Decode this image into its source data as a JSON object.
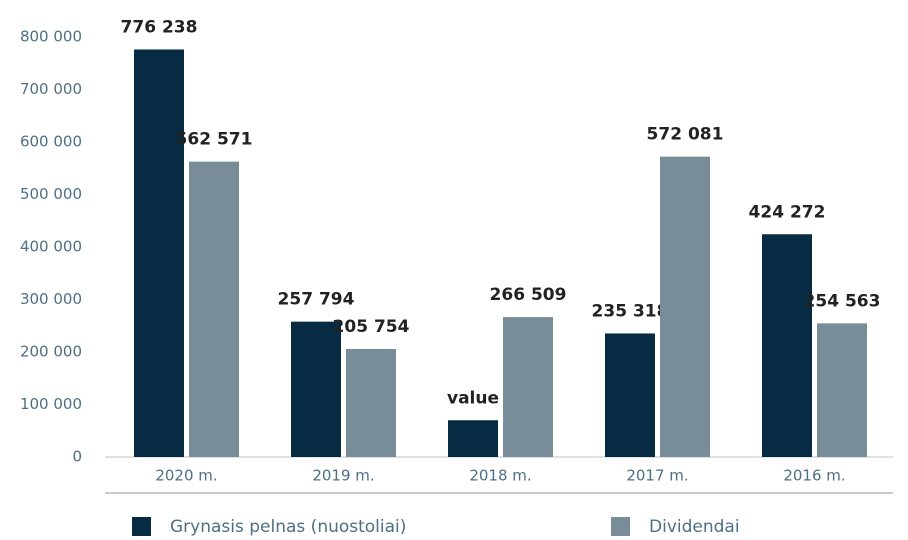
{
  "chart_data": {
    "type": "bar",
    "categories": [
      "2020 m.",
      "2019 m.",
      "2018 m.",
      "2017 m.",
      "2016 m."
    ],
    "series": [
      {
        "name": "Grynasis pelnas (nuostoliai)",
        "color": "#062b42",
        "values": [
          776238,
          257794,
          70000,
          235318,
          424272
        ],
        "value_labels": [
          "776 238",
          "257 794",
          "value",
          "235 318",
          "424 272"
        ]
      },
      {
        "name": "Dividendai",
        "color": "#788d98",
        "values": [
          562571,
          205754,
          266509,
          572081,
          254563
        ],
        "value_labels": [
          "562 571",
          "205 754",
          "266 509",
          "572 081",
          "254 563"
        ]
      }
    ],
    "ylim": [
      0,
      800000
    ],
    "yticks": [
      0,
      {
        "value": 100000,
        "label": "100 000"
      },
      {
        "value": 200000,
        "label": "200 000"
      },
      {
        "value": 300000,
        "label": "300 000"
      },
      {
        "value": 400000,
        "label": "400 000"
      },
      {
        "value": 500000,
        "label": "500 000"
      },
      {
        "value": 600000,
        "label": "600 000"
      },
      {
        "value": 700000,
        "label": "700 000"
      },
      {
        "value": 800000,
        "label": "800 000"
      }
    ],
    "grid": false,
    "legend": "bottom"
  }
}
